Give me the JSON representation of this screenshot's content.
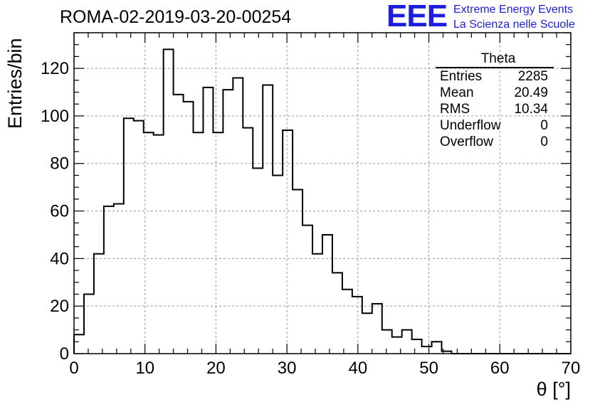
{
  "header": {
    "title": "ROMA-02-2019-03-20-00254",
    "logo": "EEE",
    "logo_line1": "Extreme Energy Events",
    "logo_line2": "La Scienza nelle Scuole"
  },
  "stats_box": {
    "title": "Theta",
    "rows": [
      {
        "label": "Entries",
        "value": "2285"
      },
      {
        "label": "Mean",
        "value": "20.49"
      },
      {
        "label": "RMS",
        "value": "10.34"
      },
      {
        "label": "Underflow",
        "value": "0"
      },
      {
        "label": "Overflow",
        "value": "0"
      }
    ]
  },
  "colors": {
    "accent": "#1d1de0",
    "grid": "#999999",
    "line": "#000000"
  },
  "chart_data": {
    "type": "histogram",
    "xlabel": "θ [°]",
    "ylabel": "Entries/bin",
    "xlim": [
      0,
      70
    ],
    "ylim": [
      0,
      135
    ],
    "grid": true,
    "bin_width": 1.4,
    "x_ticks": [
      0,
      10,
      20,
      30,
      40,
      50,
      60,
      70
    ],
    "y_ticks": [
      0,
      20,
      40,
      60,
      80,
      100,
      120
    ],
    "values": [
      8,
      25,
      42,
      62,
      63,
      99,
      98,
      93,
      92,
      128,
      109,
      106,
      93,
      112,
      93,
      111,
      116,
      95,
      78,
      113,
      75,
      94,
      69,
      54,
      42,
      50,
      34,
      27,
      24,
      17,
      21,
      10,
      7,
      10,
      6,
      3,
      5,
      1,
      0,
      0,
      0,
      0,
      0,
      0,
      0,
      0,
      0,
      0,
      0,
      0
    ]
  }
}
